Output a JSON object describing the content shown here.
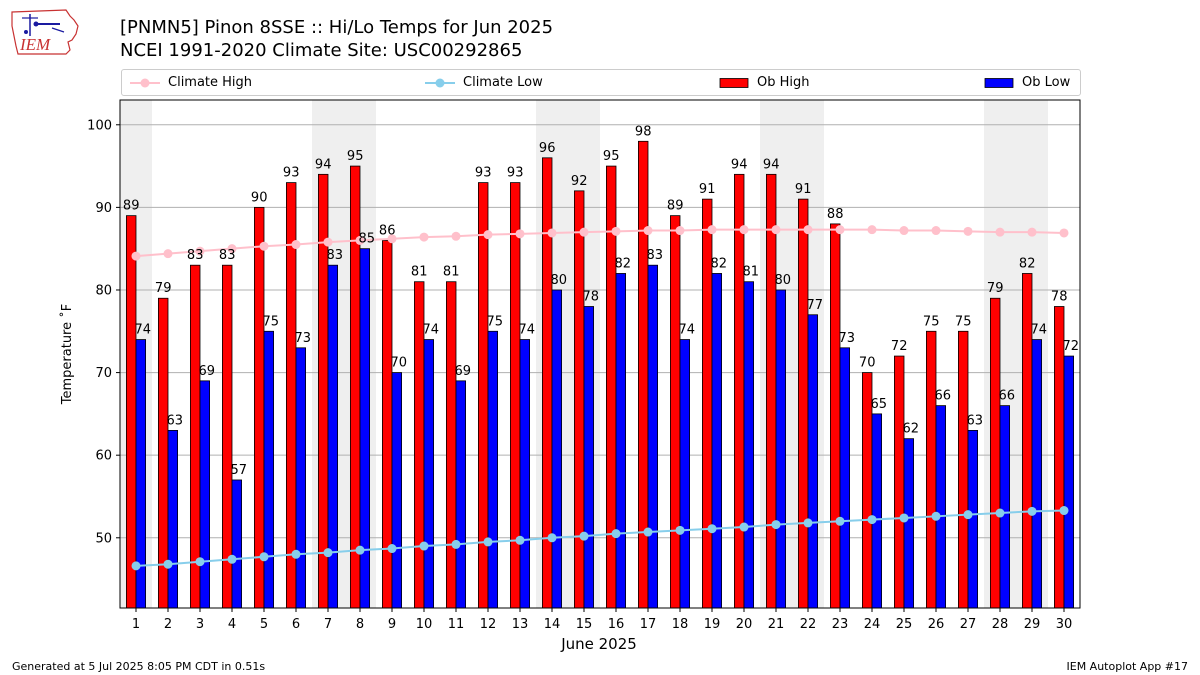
{
  "header": {
    "title_line1": "[PNMN5] Pinon 8SSE :: Hi/Lo Temps for Jun 2025",
    "title_line2": "NCEI 1991-2020 Climate Site: USC00292865"
  },
  "logo": {
    "text": "IEM"
  },
  "footer": {
    "left": "Generated at 5 Jul 2025 8:05 PM CDT in 0.51s",
    "right": "IEM Autoplot App #17"
  },
  "legend": {
    "items": [
      {
        "label": "Climate High",
        "kind": "line",
        "color": "#ffc0cb"
      },
      {
        "label": "Climate Low",
        "kind": "line",
        "color": "#87ceeb"
      },
      {
        "label": "Ob High",
        "kind": "bar",
        "color": "#ff0000"
      },
      {
        "label": "Ob Low",
        "kind": "bar",
        "color": "#0000ff"
      }
    ],
    "placement": "top"
  },
  "chart_data": {
    "type": "bar",
    "xlabel": "June 2025",
    "ylabel": "Temperature ˚F",
    "ylim": [
      41.5,
      103
    ],
    "yticks": [
      50,
      60,
      70,
      80,
      90,
      100
    ],
    "grid": true,
    "categories": [
      1,
      2,
      3,
      4,
      5,
      6,
      7,
      8,
      9,
      10,
      11,
      12,
      13,
      14,
      15,
      16,
      17,
      18,
      19,
      20,
      21,
      22,
      23,
      24,
      25,
      26,
      27,
      28,
      29,
      30
    ],
    "weekend_shaded_days": [
      1,
      7,
      8,
      14,
      15,
      21,
      22,
      28,
      29
    ],
    "series": [
      {
        "name": "Ob High",
        "type": "bar",
        "color": "#ff0000",
        "values": [
          89,
          79,
          83,
          83,
          90,
          93,
          94,
          95,
          86,
          81,
          81,
          93,
          93,
          96,
          92,
          95,
          98,
          89,
          91,
          94,
          94,
          91,
          88,
          70,
          72,
          75,
          75,
          79,
          82,
          78
        ]
      },
      {
        "name": "Ob Low",
        "type": "bar",
        "color": "#0000ff",
        "values": [
          74,
          63,
          69,
          57,
          75,
          73,
          83,
          85,
          70,
          74,
          69,
          75,
          74,
          80,
          78,
          82,
          83,
          74,
          82,
          81,
          80,
          77,
          73,
          65,
          62,
          66,
          63,
          66,
          74,
          72
        ]
      },
      {
        "name": "Climate High",
        "type": "line",
        "color": "#ffc0cb",
        "values": [
          84.1,
          84.4,
          84.7,
          85.0,
          85.3,
          85.5,
          85.8,
          86.0,
          86.2,
          86.4,
          86.5,
          86.7,
          86.8,
          86.9,
          87.0,
          87.1,
          87.2,
          87.2,
          87.3,
          87.3,
          87.3,
          87.3,
          87.3,
          87.3,
          87.2,
          87.2,
          87.1,
          87.0,
          87.0,
          86.9
        ]
      },
      {
        "name": "Climate Low",
        "type": "line",
        "color": "#87ceeb",
        "values": [
          46.6,
          46.8,
          47.1,
          47.4,
          47.7,
          48.0,
          48.2,
          48.5,
          48.7,
          49.0,
          49.2,
          49.5,
          49.7,
          50.0,
          50.2,
          50.5,
          50.7,
          50.9,
          51.1,
          51.3,
          51.6,
          51.8,
          52.0,
          52.2,
          52.4,
          52.6,
          52.8,
          53.0,
          53.2,
          53.3
        ]
      }
    ]
  }
}
